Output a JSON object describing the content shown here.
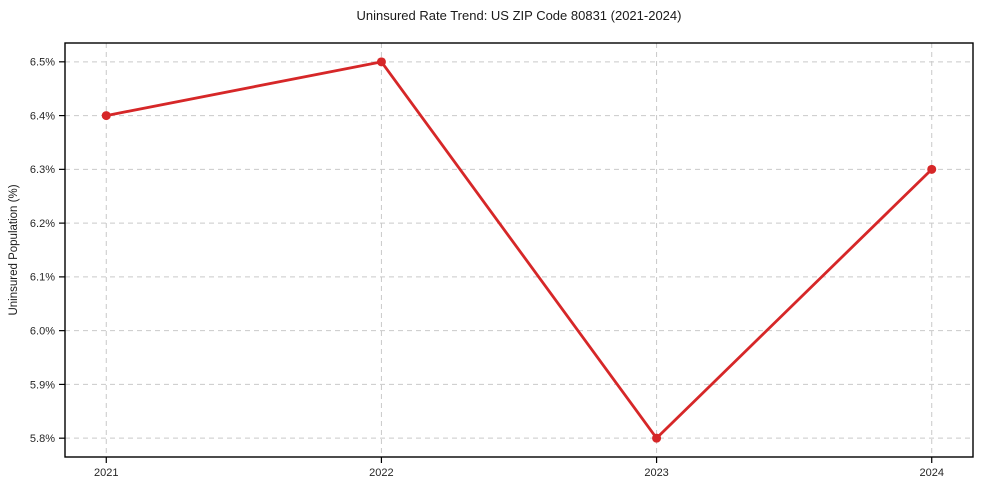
{
  "chart_data": {
    "type": "line",
    "title": "Uninsured Rate Trend: US ZIP Code 80831 (2021-2024)",
    "xlabel": "",
    "ylabel": "Uninsured Population (%)",
    "x": [
      2021,
      2022,
      2023,
      2024
    ],
    "values": [
      6.4,
      6.5,
      5.8,
      6.3
    ],
    "x_tick_labels": [
      "2021",
      "2022",
      "2023",
      "2024"
    ],
    "y_tick_values": [
      5.8,
      5.9,
      6.0,
      6.1,
      6.2,
      6.3,
      6.4,
      6.5
    ],
    "y_tick_labels": [
      "5.8%",
      "5.9%",
      "6.0%",
      "6.1%",
      "6.2%",
      "6.3%",
      "6.4%",
      "6.5%"
    ],
    "xlim": [
      2020.85,
      2024.15
    ],
    "ylim": [
      5.765,
      6.535
    ],
    "grid": true,
    "grid_style": "dashed",
    "legend": "none",
    "colors": {
      "line": "#d62728",
      "marker": "#d62728",
      "grid": "#c9c9c9",
      "axis": "#000000",
      "text": "#1a1a1a",
      "background": "#ffffff"
    }
  }
}
